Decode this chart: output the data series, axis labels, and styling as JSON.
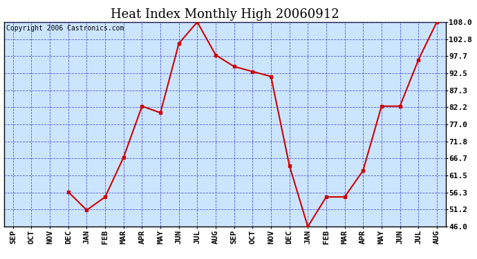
{
  "title": "Heat Index Monthly High 20060912",
  "copyright": "Copyright 2006 Castronics.com",
  "months": [
    "SEP",
    "OCT",
    "NOV",
    "DEC",
    "JAN",
    "FEB",
    "MAR",
    "APR",
    "MAY",
    "JUN",
    "JUL",
    "AUG",
    "SEP",
    "OCT",
    "NOV",
    "DEC",
    "JAN",
    "FEB",
    "MAR",
    "APR",
    "MAY",
    "JUN",
    "JUL",
    "AUG"
  ],
  "plot_values": [
    null,
    null,
    null,
    56.5,
    51.0,
    55.0,
    67.0,
    82.5,
    80.5,
    101.5,
    108.0,
    98.0,
    94.5,
    93.0,
    91.5,
    64.5,
    46.0,
    55.0,
    55.0,
    63.0,
    82.5,
    82.5,
    96.5,
    108.0
  ],
  "yticks": [
    46.0,
    51.2,
    56.3,
    61.5,
    66.7,
    71.8,
    77.0,
    82.2,
    87.3,
    92.5,
    97.7,
    102.8,
    108.0
  ],
  "ymin": 46.0,
  "ymax": 108.0,
  "line_color": "#cc0000",
  "marker_color": "#cc0000",
  "bg_color": "#cce5ff",
  "grid_color": "#3333cc",
  "title_color": "#000000",
  "axis_label_color": "#000000",
  "copyright_color": "#000000",
  "title_fontsize": 13,
  "tick_fontsize": 8,
  "copyright_fontsize": 7
}
